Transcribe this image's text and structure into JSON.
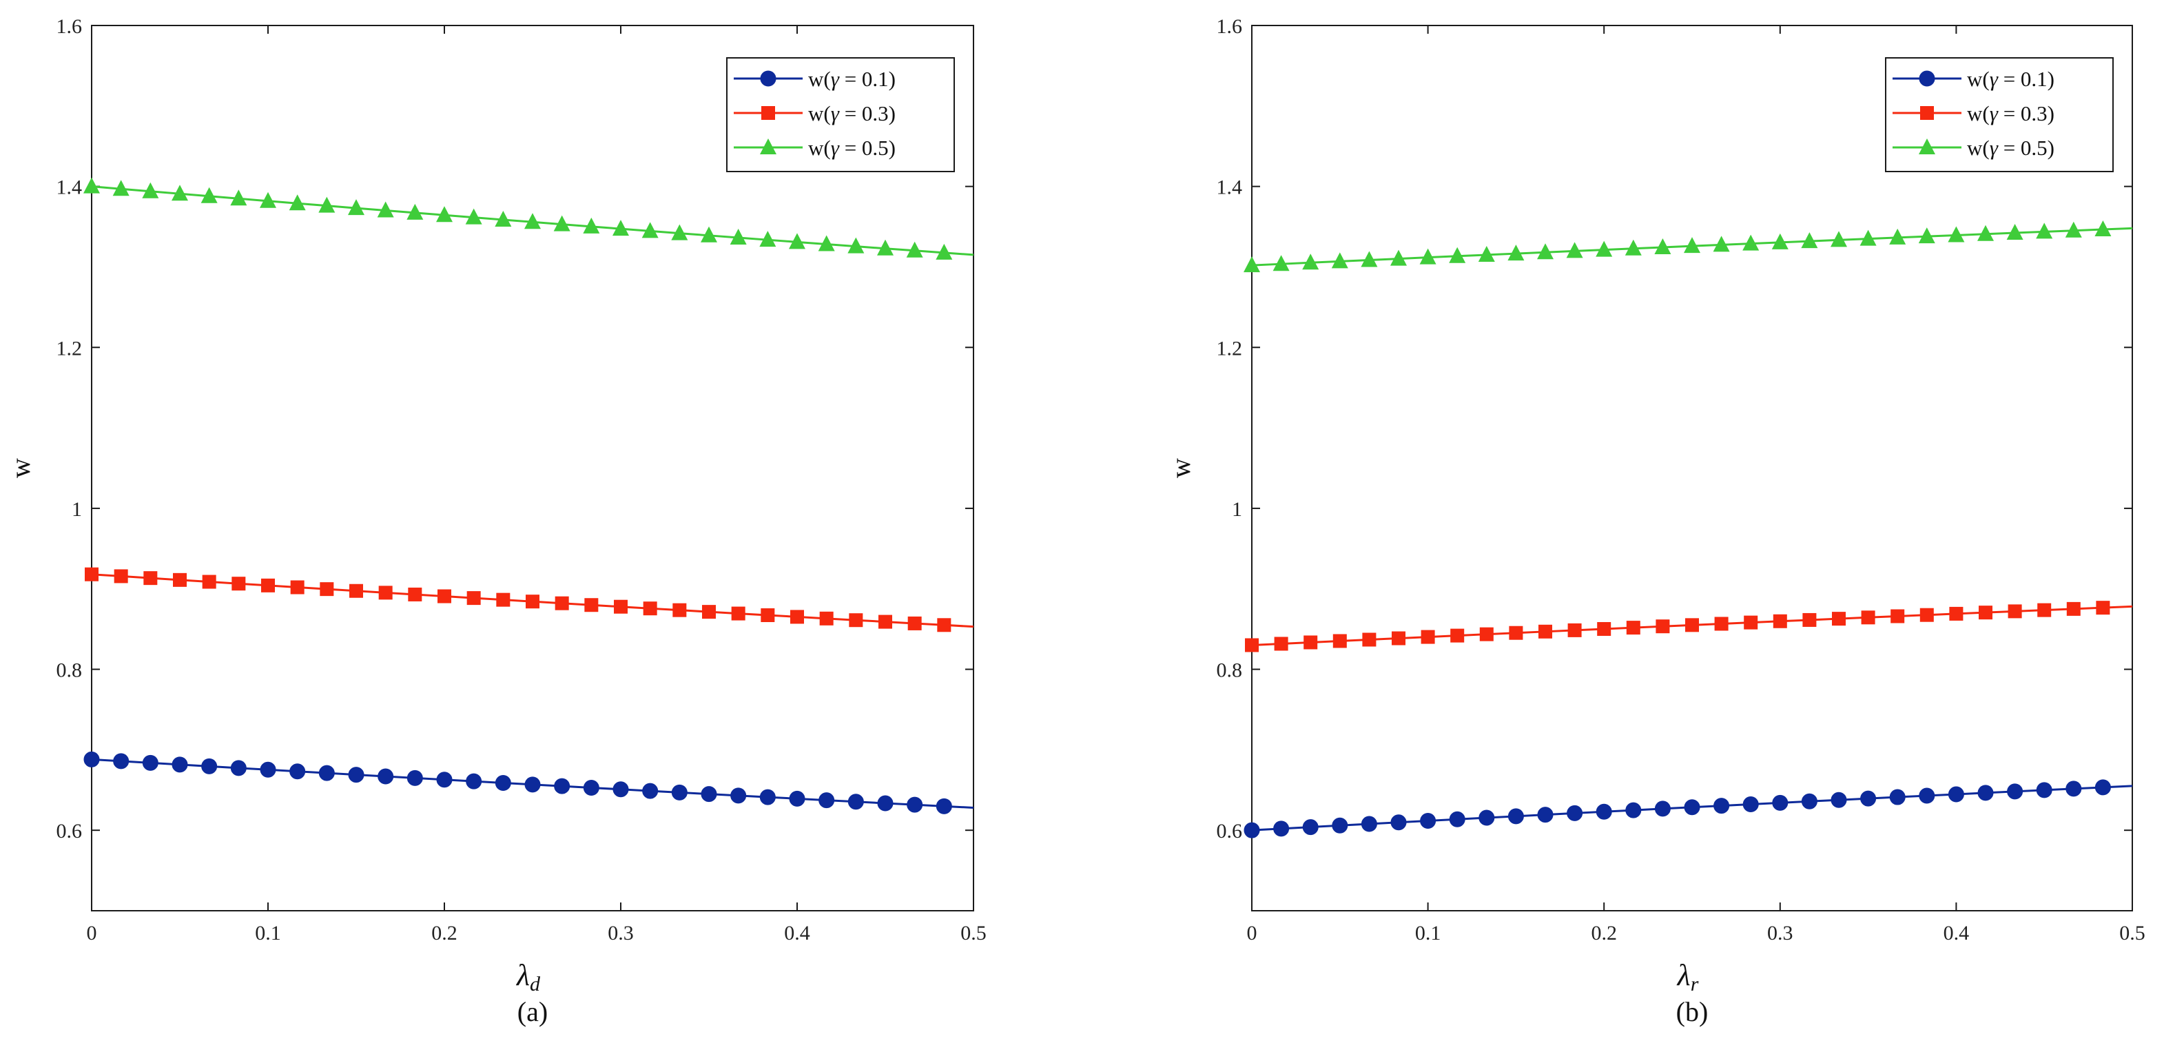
{
  "chart_data": [
    {
      "type": "line",
      "panel_label": "(a)",
      "xlabel": "λ",
      "xlabel_sub": "d",
      "ylabel": "w",
      "xlim": [
        0,
        0.5
      ],
      "ylim": [
        0.5,
        1.6
      ],
      "xticks": [
        "0",
        "0.1",
        "0.2",
        "0.3",
        "0.4",
        "0.5"
      ],
      "yticks": [
        "0.6",
        "0.8",
        "1",
        "1.2",
        "1.4",
        "1.6"
      ],
      "legend_position": "top-right",
      "series": [
        {
          "name_prefix": "w(",
          "name_var": "γ",
          "name_suffix": " = 0.1)",
          "color": "#0d2a9a",
          "marker": "circle",
          "start": 0.688,
          "end": 0.628
        },
        {
          "name_prefix": "w(",
          "name_var": "γ",
          "name_suffix": " = 0.3)",
          "color": "#f5290f",
          "marker": "square",
          "start": 0.918,
          "end": 0.853
        },
        {
          "name_prefix": "w(",
          "name_var": "γ",
          "name_suffix": " = 0.5)",
          "color": "#3fcc3a",
          "marker": "triangle",
          "start": 1.4,
          "end": 1.315
        }
      ]
    },
    {
      "type": "line",
      "panel_label": "(b)",
      "xlabel": "λ",
      "xlabel_sub": "r",
      "ylabel": "w",
      "xlim": [
        0,
        0.5
      ],
      "ylim": [
        0.5,
        1.6
      ],
      "xticks": [
        "0",
        "0.1",
        "0.2",
        "0.3",
        "0.4",
        "0.5"
      ],
      "yticks": [
        "0.6",
        "0.8",
        "1",
        "1.2",
        "1.4",
        "1.6"
      ],
      "legend_position": "top-right",
      "series": [
        {
          "name_prefix": "w(",
          "name_var": "γ",
          "name_suffix": " = 0.1)",
          "color": "#0d2a9a",
          "marker": "circle",
          "start": 0.6,
          "end": 0.655
        },
        {
          "name_prefix": "w(",
          "name_var": "γ",
          "name_suffix": " = 0.3)",
          "color": "#f5290f",
          "marker": "square",
          "start": 0.83,
          "end": 0.878
        },
        {
          "name_prefix": "w(",
          "name_var": "γ",
          "name_suffix": " = 0.5)",
          "color": "#3fcc3a",
          "marker": "triangle",
          "start": 1.302,
          "end": 1.348
        }
      ]
    }
  ]
}
